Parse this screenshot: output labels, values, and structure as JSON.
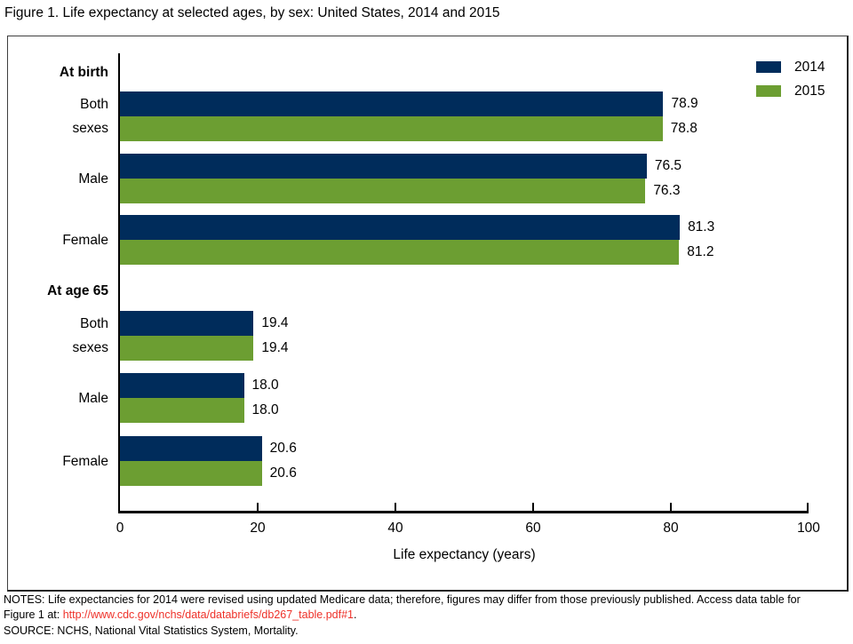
{
  "figure_title": "Figure 1. Life expectancy at selected ages, by sex: United States, 2014 and 2015",
  "colors": {
    "series_2014": "#002c5b",
    "series_2015": "#6c9e32",
    "link_red": "#ee3129",
    "axis": "#000000"
  },
  "chart_data": {
    "type": "bar",
    "orientation": "horizontal",
    "title": "Figure 1. Life expectancy at selected ages, by sex: United States, 2014 and 2015",
    "xlabel": "Life expectancy (years)",
    "xlim": [
      0,
      100
    ],
    "xticks": [
      0,
      20,
      40,
      60,
      80,
      100
    ],
    "grid": false,
    "legend_position": "top-right",
    "value_labels": "right of bar end, one decimal",
    "series_names": [
      "2014",
      "2015"
    ],
    "series_colors": {
      "2014": "#002c5b",
      "2015": "#6c9e32"
    },
    "groups": [
      {
        "label": "At birth",
        "rows": [
          {
            "category": "Both sexes",
            "category_lines": [
              "Both",
              "sexes"
            ],
            "series": [
              {
                "name": "2014",
                "value": 78.9
              },
              {
                "name": "2015",
                "value": 78.8
              }
            ]
          },
          {
            "category": "Male",
            "category_lines": [
              "Male"
            ],
            "series": [
              {
                "name": "2014",
                "value": 76.5
              },
              {
                "name": "2015",
                "value": 76.3
              }
            ]
          },
          {
            "category": "Female",
            "category_lines": [
              "Female"
            ],
            "series": [
              {
                "name": "2014",
                "value": 81.3
              },
              {
                "name": "2015",
                "value": 81.2
              }
            ]
          }
        ]
      },
      {
        "label": "At age 65",
        "rows": [
          {
            "category": "Both sexes",
            "category_lines": [
              "Both",
              "sexes"
            ],
            "series": [
              {
                "name": "2014",
                "value": 19.4
              },
              {
                "name": "2015",
                "value": 19.4
              }
            ]
          },
          {
            "category": "Male",
            "category_lines": [
              "Male"
            ],
            "series": [
              {
                "name": "2014",
                "value": 18.0
              },
              {
                "name": "2015",
                "value": 18.0
              }
            ]
          },
          {
            "category": "Female",
            "category_lines": [
              "Female"
            ],
            "series": [
              {
                "name": "2014",
                "value": 20.6
              },
              {
                "name": "2015",
                "value": 20.6
              }
            ]
          }
        ]
      }
    ]
  },
  "footer": {
    "notes_line1": "NOTES: Life expectancies for 2014 were revised using updated Medicare data; therefore, figures may differ from those previously published. Access data table for",
    "notes_line2_prefix": "Figure 1 at: ",
    "notes_link": "http://www.cdc.gov/nchs/data/databriefs/db267_table.pdf#1",
    "notes_line2_suffix": ".",
    "source": "SOURCE: NCHS, National Vital Statistics System, Mortality."
  }
}
